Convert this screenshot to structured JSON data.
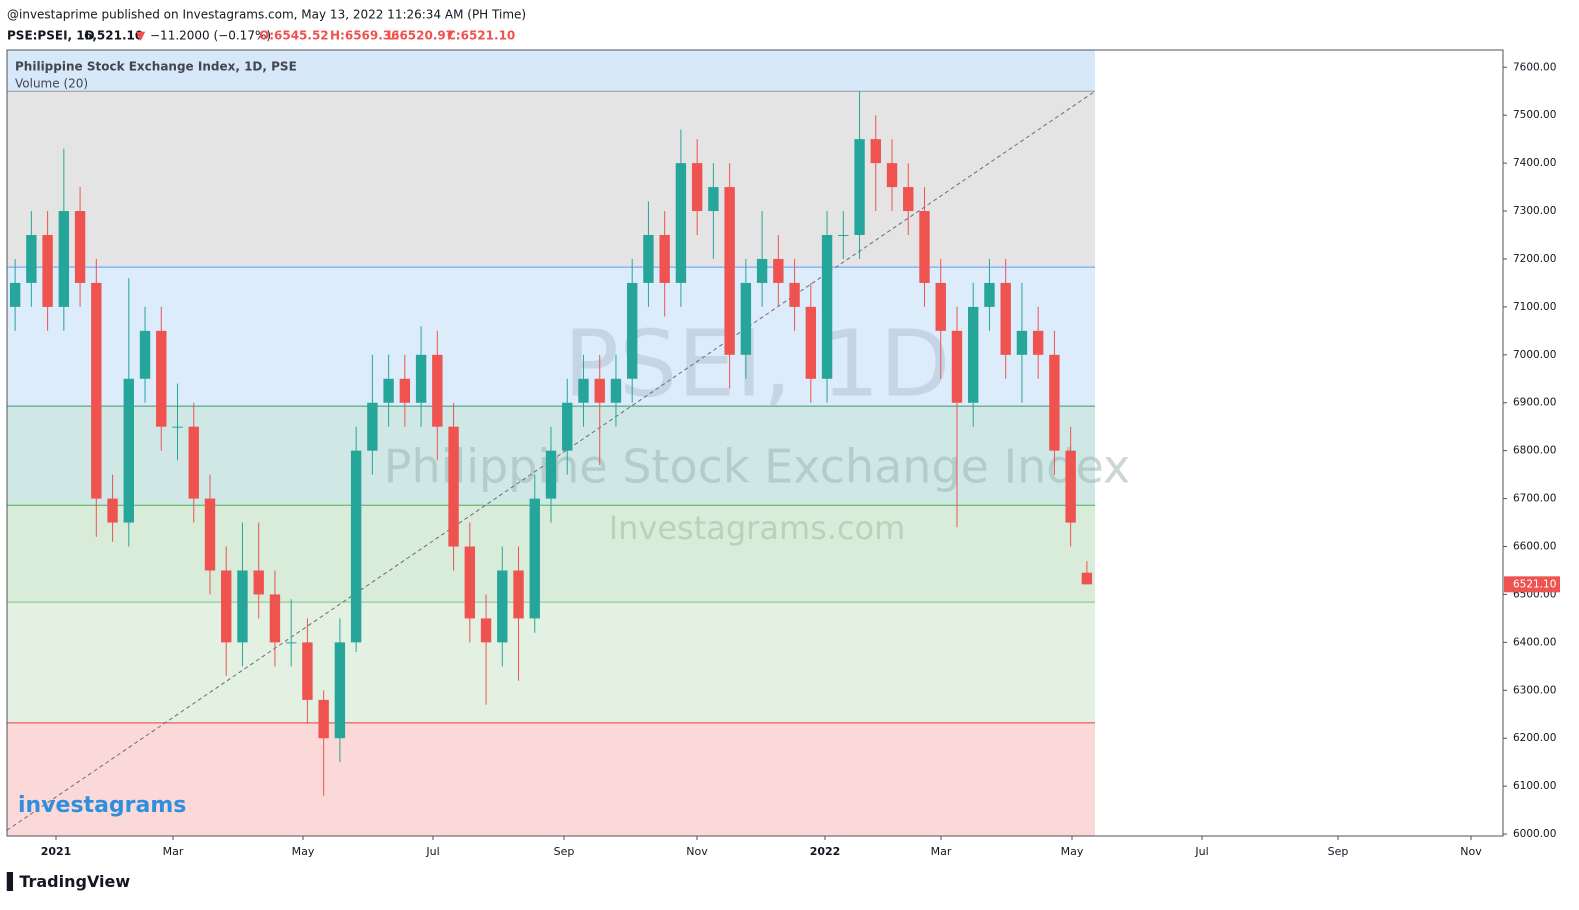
{
  "header": {
    "published": "@investaprime published on Investagrams.com, May 13, 2022 11:26:34 AM (PH Time)",
    "symbol": "PSE:PSEI, 1D",
    "price": "6,521.10",
    "arrow": "▼",
    "change": "−11.2000 (−0.17%)",
    "open": "O:6545.52",
    "high": "H:6569.36",
    "low": "L:6520.97",
    "close": "C:6521.10"
  },
  "chart_data": {
    "type": "candlestick",
    "title": "Philippine Stock Exchange Index, 1D, PSE",
    "subtitle": "Volume (20)",
    "watermarks": [
      "PSEI, 1D",
      "Philippine Stock Exchange Index",
      "Investagrams.com"
    ],
    "up_color": "#26a69a",
    "down_color": "#ef5350",
    "open": [
      7100,
      7150,
      7250,
      7100,
      7300,
      7150,
      6700,
      6650,
      6950,
      7050,
      6850,
      6850,
      6700,
      6550,
      6400,
      6550,
      6500,
      6400,
      6400,
      6280,
      6200,
      6400,
      6800,
      6900,
      6950,
      6900,
      7000,
      6850,
      6600,
      6450,
      6400,
      6550,
      6450,
      6700,
      6800,
      6900,
      6950,
      6900,
      6950,
      7150,
      7250,
      7150,
      7400,
      7300,
      7350,
      7000,
      7150,
      7200,
      7150,
      7100,
      6950,
      7250,
      7250,
      7450,
      7400,
      7350,
      7300,
      7150,
      7050,
      6900,
      7100,
      7150,
      7000,
      7050,
      7000,
      6800,
      6545.52
    ],
    "high": [
      7200,
      7300,
      7300,
      7430,
      7350,
      7200,
      6750,
      7160,
      7100,
      7100,
      6940,
      6900,
      6750,
      6600,
      6650,
      6650,
      6550,
      6490,
      6450,
      6300,
      6450,
      6850,
      7000,
      7000,
      7000,
      7060,
      7050,
      6900,
      6650,
      6500,
      6600,
      6600,
      6750,
      6850,
      6950,
      7000,
      7000,
      7000,
      7200,
      7320,
      7300,
      7470,
      7450,
      7400,
      7400,
      7200,
      7300,
      7250,
      7200,
      7150,
      7300,
      7300,
      7550,
      7500,
      7450,
      7400,
      7350,
      7200,
      7100,
      7150,
      7200,
      7200,
      7150,
      7100,
      7050,
      6850,
      6569.36
    ],
    "low": [
      7050,
      7100,
      7050,
      7050,
      7100,
      6620,
      6610,
      6600,
      6900,
      6800,
      6780,
      6650,
      6500,
      6330,
      6350,
      6450,
      6350,
      6350,
      6230,
      6080,
      6150,
      6380,
      6750,
      6850,
      6850,
      6850,
      6780,
      6550,
      6400,
      6270,
      6350,
      6320,
      6420,
      6650,
      6750,
      6850,
      6770,
      6850,
      6900,
      7100,
      7080,
      7100,
      7250,
      7200,
      6930,
      6950,
      7100,
      7100,
      7050,
      6900,
      6900,
      7200,
      7200,
      7300,
      7300,
      7250,
      7100,
      6950,
      6640,
      6850,
      7050,
      6950,
      6900,
      6950,
      6750,
      6600,
      6520.97
    ],
    "close": [
      7150,
      7250,
      7100,
      7300,
      7150,
      6700,
      6650,
      6950,
      7050,
      6850,
      6850,
      6700,
      6550,
      6400,
      6550,
      6500,
      6400,
      6400,
      6280,
      6200,
      6400,
      6800,
      6900,
      6950,
      6900,
      7000,
      6850,
      6600,
      6450,
      6400,
      6550,
      6450,
      6700,
      6800,
      6900,
      6950,
      6900,
      6950,
      7150,
      7250,
      7150,
      7400,
      7300,
      7350,
      7000,
      7150,
      7200,
      7150,
      7100,
      6950,
      7250,
      7250,
      7450,
      7400,
      7350,
      7300,
      7150,
      7050,
      6900,
      7100,
      7150,
      7000,
      7050,
      7000,
      6800,
      6650,
      6521.1
    ],
    "last_label": "6521.10",
    "levels": [
      7550,
      7183,
      6893,
      6686,
      6484,
      6232
    ],
    "level_colors": [
      "#9598a1",
      "#5b9cf6",
      "#3d9970",
      "#4caf50",
      "#81c784",
      "#f23645"
    ],
    "band_colors": [
      "#d7e8f8",
      "#e4e4e4",
      "#dcecfa",
      "#cfe7e5",
      "#d8ecd9",
      "#e3f1e2",
      "#fcd9d9"
    ],
    "trendline": [
      6008,
      7550
    ],
    "xticks": [
      "2021",
      "Mar",
      "May",
      "Jul",
      "Sep",
      "Nov",
      "2022",
      "Mar",
      "May",
      "Jul",
      "Sep",
      "Nov"
    ],
    "ylim": [
      5996,
      7636
    ],
    "yticks": [
      {
        "value": 6000,
        "label": "6000.00"
      },
      {
        "value": 6100,
        "label": "6100.00"
      },
      {
        "value": 6200,
        "label": "6200.00"
      },
      {
        "value": 6300,
        "label": "6300.00"
      },
      {
        "value": 6400,
        "label": "6400.00"
      },
      {
        "value": 6500,
        "label": "6500.00"
      },
      {
        "value": 6600,
        "label": "6600.00"
      },
      {
        "value": 6700,
        "label": "6700.00"
      },
      {
        "value": 6800,
        "label": "6800.00"
      },
      {
        "value": 6900,
        "label": "6900.00"
      },
      {
        "value": 7000,
        "label": "7000.00"
      },
      {
        "value": 7100,
        "label": "7100.00"
      },
      {
        "value": 7200,
        "label": "7200.00"
      },
      {
        "value": 7300,
        "label": "7300.00"
      },
      {
        "value": 7400,
        "label": "7400.00"
      },
      {
        "value": 7500,
        "label": "7500.00"
      },
      {
        "value": 7600,
        "label": "7600.00"
      }
    ]
  },
  "footer": {
    "logo": "investagrams",
    "brand": "TradingView"
  }
}
